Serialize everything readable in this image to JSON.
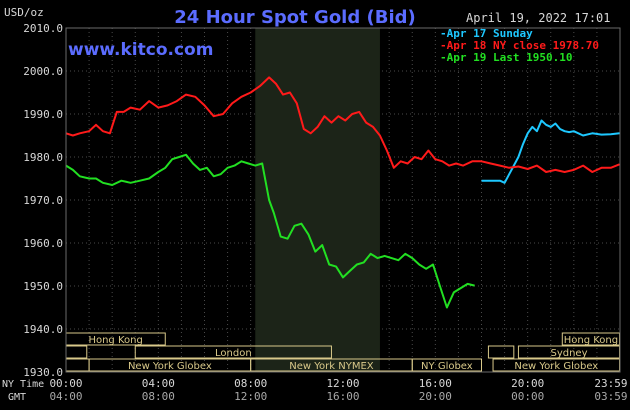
{
  "chart_data": {
    "type": "line",
    "title": "24 Hour Spot Gold (Bid)",
    "source_label": "www.kitco.com",
    "date_label": "April 19, 2022 17:01",
    "ylabel": "USD/oz",
    "ylim": [
      1930,
      2010
    ],
    "yticks": [
      "2010.0",
      "2000.0",
      "1990.0",
      "1980.0",
      "1970.0",
      "1960.0",
      "1950.0",
      "1940.0",
      "1930.0"
    ],
    "xlim": [
      0,
      24
    ],
    "x_row_ny_label": "NY Time",
    "x_row_gmt_label": "GMT",
    "xticks_ny": [
      "00:00",
      "04:00",
      "08:00",
      "12:00",
      "16:00",
      "20:00",
      "23:59"
    ],
    "xticks_gmt": [
      "04:00",
      "08:00",
      "12:00",
      "16:00",
      "20:00",
      "00:00",
      "03:59"
    ],
    "xtick_hours": [
      0,
      4,
      8,
      12,
      16,
      20,
      23.98
    ],
    "grid": true,
    "legend_position": "top-right",
    "shaded_hours": [
      8.2,
      13.6
    ],
    "colors": {
      "apr17": "#1ec8ff",
      "apr18": "#ff1a1a",
      "apr19": "#22e022",
      "title": "#5b6cff",
      "text": "#d8d8d8",
      "session_bar": "#d9c98a"
    },
    "series": [
      {
        "name": "Apr 17 Sunday",
        "key": "apr17",
        "x": [
          18.0,
          18.4,
          18.8,
          19.0,
          19.2,
          19.4,
          19.6,
          19.8,
          20.0,
          20.2,
          20.4,
          20.6,
          20.8,
          21.0,
          21.2,
          21.4,
          21.6,
          21.8,
          22.0,
          22.4,
          22.8,
          23.2,
          23.6,
          23.98
        ],
        "values": [
          1974.5,
          1974.5,
          1974.5,
          1974.0,
          1976.0,
          1978.0,
          1980.0,
          1983.0,
          1985.5,
          1987.0,
          1986.0,
          1988.5,
          1987.5,
          1987.0,
          1987.8,
          1986.5,
          1986.0,
          1985.8,
          1986.0,
          1985.0,
          1985.5,
          1985.2,
          1985.3,
          1985.5
        ]
      },
      {
        "name": "Apr 18 NY close 1978.70",
        "key": "apr18",
        "x": [
          0.0,
          0.3,
          0.6,
          1.0,
          1.3,
          1.6,
          1.9,
          2.2,
          2.5,
          2.8,
          3.2,
          3.6,
          4.0,
          4.4,
          4.8,
          5.2,
          5.6,
          6.0,
          6.4,
          6.8,
          7.2,
          7.6,
          8.0,
          8.4,
          8.8,
          9.1,
          9.4,
          9.7,
          10.0,
          10.3,
          10.6,
          10.9,
          11.2,
          11.5,
          11.8,
          12.1,
          12.4,
          12.7,
          13.0,
          13.3,
          13.6,
          13.9,
          14.2,
          14.5,
          14.8,
          15.1,
          15.4,
          15.7,
          16.0,
          16.3,
          16.6,
          16.9,
          17.2,
          17.6,
          18.0,
          18.4,
          18.8,
          19.2,
          19.6,
          20.0,
          20.4,
          20.8,
          21.2,
          21.6,
          22.0,
          22.4,
          22.8,
          23.2,
          23.6,
          23.98
        ],
        "values": [
          1985.5,
          1985.0,
          1985.5,
          1986.0,
          1987.5,
          1986.0,
          1985.5,
          1990.5,
          1990.5,
          1991.5,
          1991.0,
          1993.0,
          1991.5,
          1992.0,
          1993.0,
          1994.5,
          1994.0,
          1992.0,
          1989.5,
          1990.0,
          1992.5,
          1994.0,
          1995.0,
          1996.5,
          1998.5,
          1997.0,
          1994.5,
          1995.0,
          1992.5,
          1986.5,
          1985.5,
          1987.0,
          1989.5,
          1988.0,
          1989.5,
          1988.5,
          1990.0,
          1990.5,
          1988.0,
          1987.0,
          1985.0,
          1981.5,
          1977.5,
          1979.0,
          1978.5,
          1980.0,
          1979.5,
          1981.5,
          1979.5,
          1979.0,
          1978.0,
          1978.5,
          1978.0,
          1979.0,
          1979.0,
          1978.5,
          1978.0,
          1977.5,
          1977.8,
          1977.2,
          1978.0,
          1976.5,
          1977.0,
          1976.5,
          1977.0,
          1978.0,
          1976.5,
          1977.5,
          1977.5,
          1978.3
        ]
      },
      {
        "name": "Apr 19 Last 1950.10",
        "key": "apr19",
        "x": [
          0.0,
          0.3,
          0.6,
          1.0,
          1.3,
          1.6,
          2.0,
          2.4,
          2.8,
          3.2,
          3.6,
          4.0,
          4.3,
          4.6,
          4.9,
          5.2,
          5.5,
          5.8,
          6.1,
          6.4,
          6.7,
          7.0,
          7.3,
          7.6,
          7.9,
          8.2,
          8.5,
          8.8,
          9.0,
          9.3,
          9.6,
          9.9,
          10.2,
          10.5,
          10.8,
          11.1,
          11.4,
          11.7,
          12.0,
          12.3,
          12.6,
          12.9,
          13.2,
          13.5,
          13.8,
          14.1,
          14.4,
          14.7,
          15.0,
          15.3,
          15.6,
          15.9,
          16.2,
          16.5,
          16.8,
          17.1,
          17.4,
          17.7
        ],
        "values": [
          1978.0,
          1977.0,
          1975.5,
          1975.0,
          1975.0,
          1974.0,
          1973.5,
          1974.5,
          1974.0,
          1974.5,
          1975.0,
          1976.5,
          1977.5,
          1979.5,
          1980.0,
          1980.5,
          1978.5,
          1977.0,
          1977.5,
          1975.5,
          1976.0,
          1977.5,
          1978.0,
          1979.0,
          1978.5,
          1978.0,
          1978.5,
          1970.0,
          1967.0,
          1961.5,
          1961.0,
          1964.0,
          1964.5,
          1962.0,
          1958.0,
          1959.5,
          1955.0,
          1954.5,
          1952.0,
          1953.5,
          1955.0,
          1955.5,
          1957.5,
          1956.5,
          1957.0,
          1956.5,
          1956.0,
          1957.5,
          1956.5,
          1955.0,
          1954.0,
          1955.0,
          1950.0,
          1945.0,
          1948.5,
          1949.5,
          1950.5,
          1950.1
        ]
      }
    ],
    "sessions": [
      {
        "label": "Hong Kong",
        "start": 0.0,
        "end": 4.3,
        "row": 0
      },
      {
        "label": "Hong Kong",
        "start": 21.5,
        "end": 23.98,
        "row": 0
      },
      {
        "label": "London",
        "start": 3.0,
        "end": 11.5,
        "row": 1
      },
      {
        "label": "Sydney",
        "start": 19.6,
        "end": 23.98,
        "row": 1
      },
      {
        "label": "New York Globex",
        "start": 1.0,
        "end": 8.0,
        "row": 2
      },
      {
        "label": "New York NYMEX",
        "start": 8.0,
        "end": 15.0,
        "row": 2
      },
      {
        "label": "NY Globex",
        "start": 15.0,
        "end": 18.0,
        "row": 2
      },
      {
        "label": "New York Globex",
        "start": 18.5,
        "end": 23.98,
        "row": 2
      }
    ],
    "session_row_stubs": [
      {
        "start": 0.0,
        "end": 1.0,
        "row": 2
      },
      {
        "start": 0.0,
        "end": 0.9,
        "row": 1
      },
      {
        "start": 18.3,
        "end": 19.4,
        "row": 1
      }
    ]
  }
}
